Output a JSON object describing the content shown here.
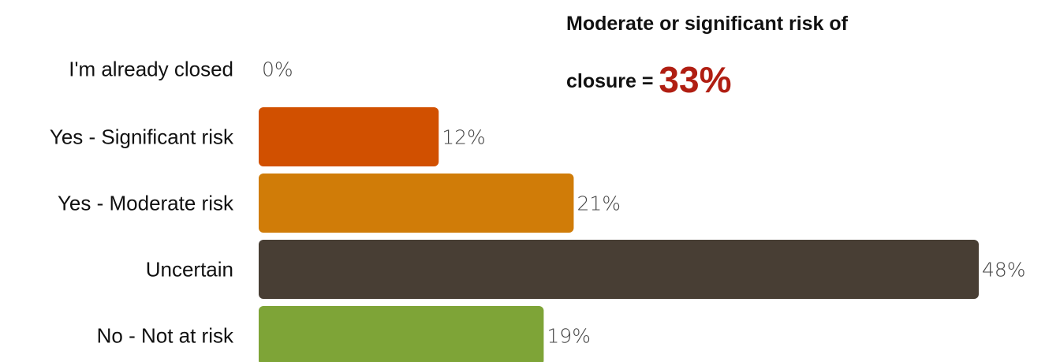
{
  "chart_data": {
    "type": "bar",
    "orientation": "horizontal",
    "categories": [
      "I'm already closed",
      "Yes - Significant risk",
      "Yes - Moderate risk",
      "Uncertain",
      "No - Not at risk"
    ],
    "values": [
      0,
      12,
      21,
      48,
      19
    ],
    "value_labels": [
      "0%",
      "12%",
      "21%",
      "48%",
      "19%"
    ],
    "colors": [
      "#d15000",
      "#d15000",
      "#d07c08",
      "#483e34",
      "#7ea437"
    ],
    "xlim": [
      0,
      48
    ],
    "grid": false,
    "legend": "none"
  },
  "callout": {
    "line1": "Moderate or significant risk of",
    "line2_prefix": "closure = ",
    "highlight": "33%",
    "highlight_color": "#b01e12"
  }
}
